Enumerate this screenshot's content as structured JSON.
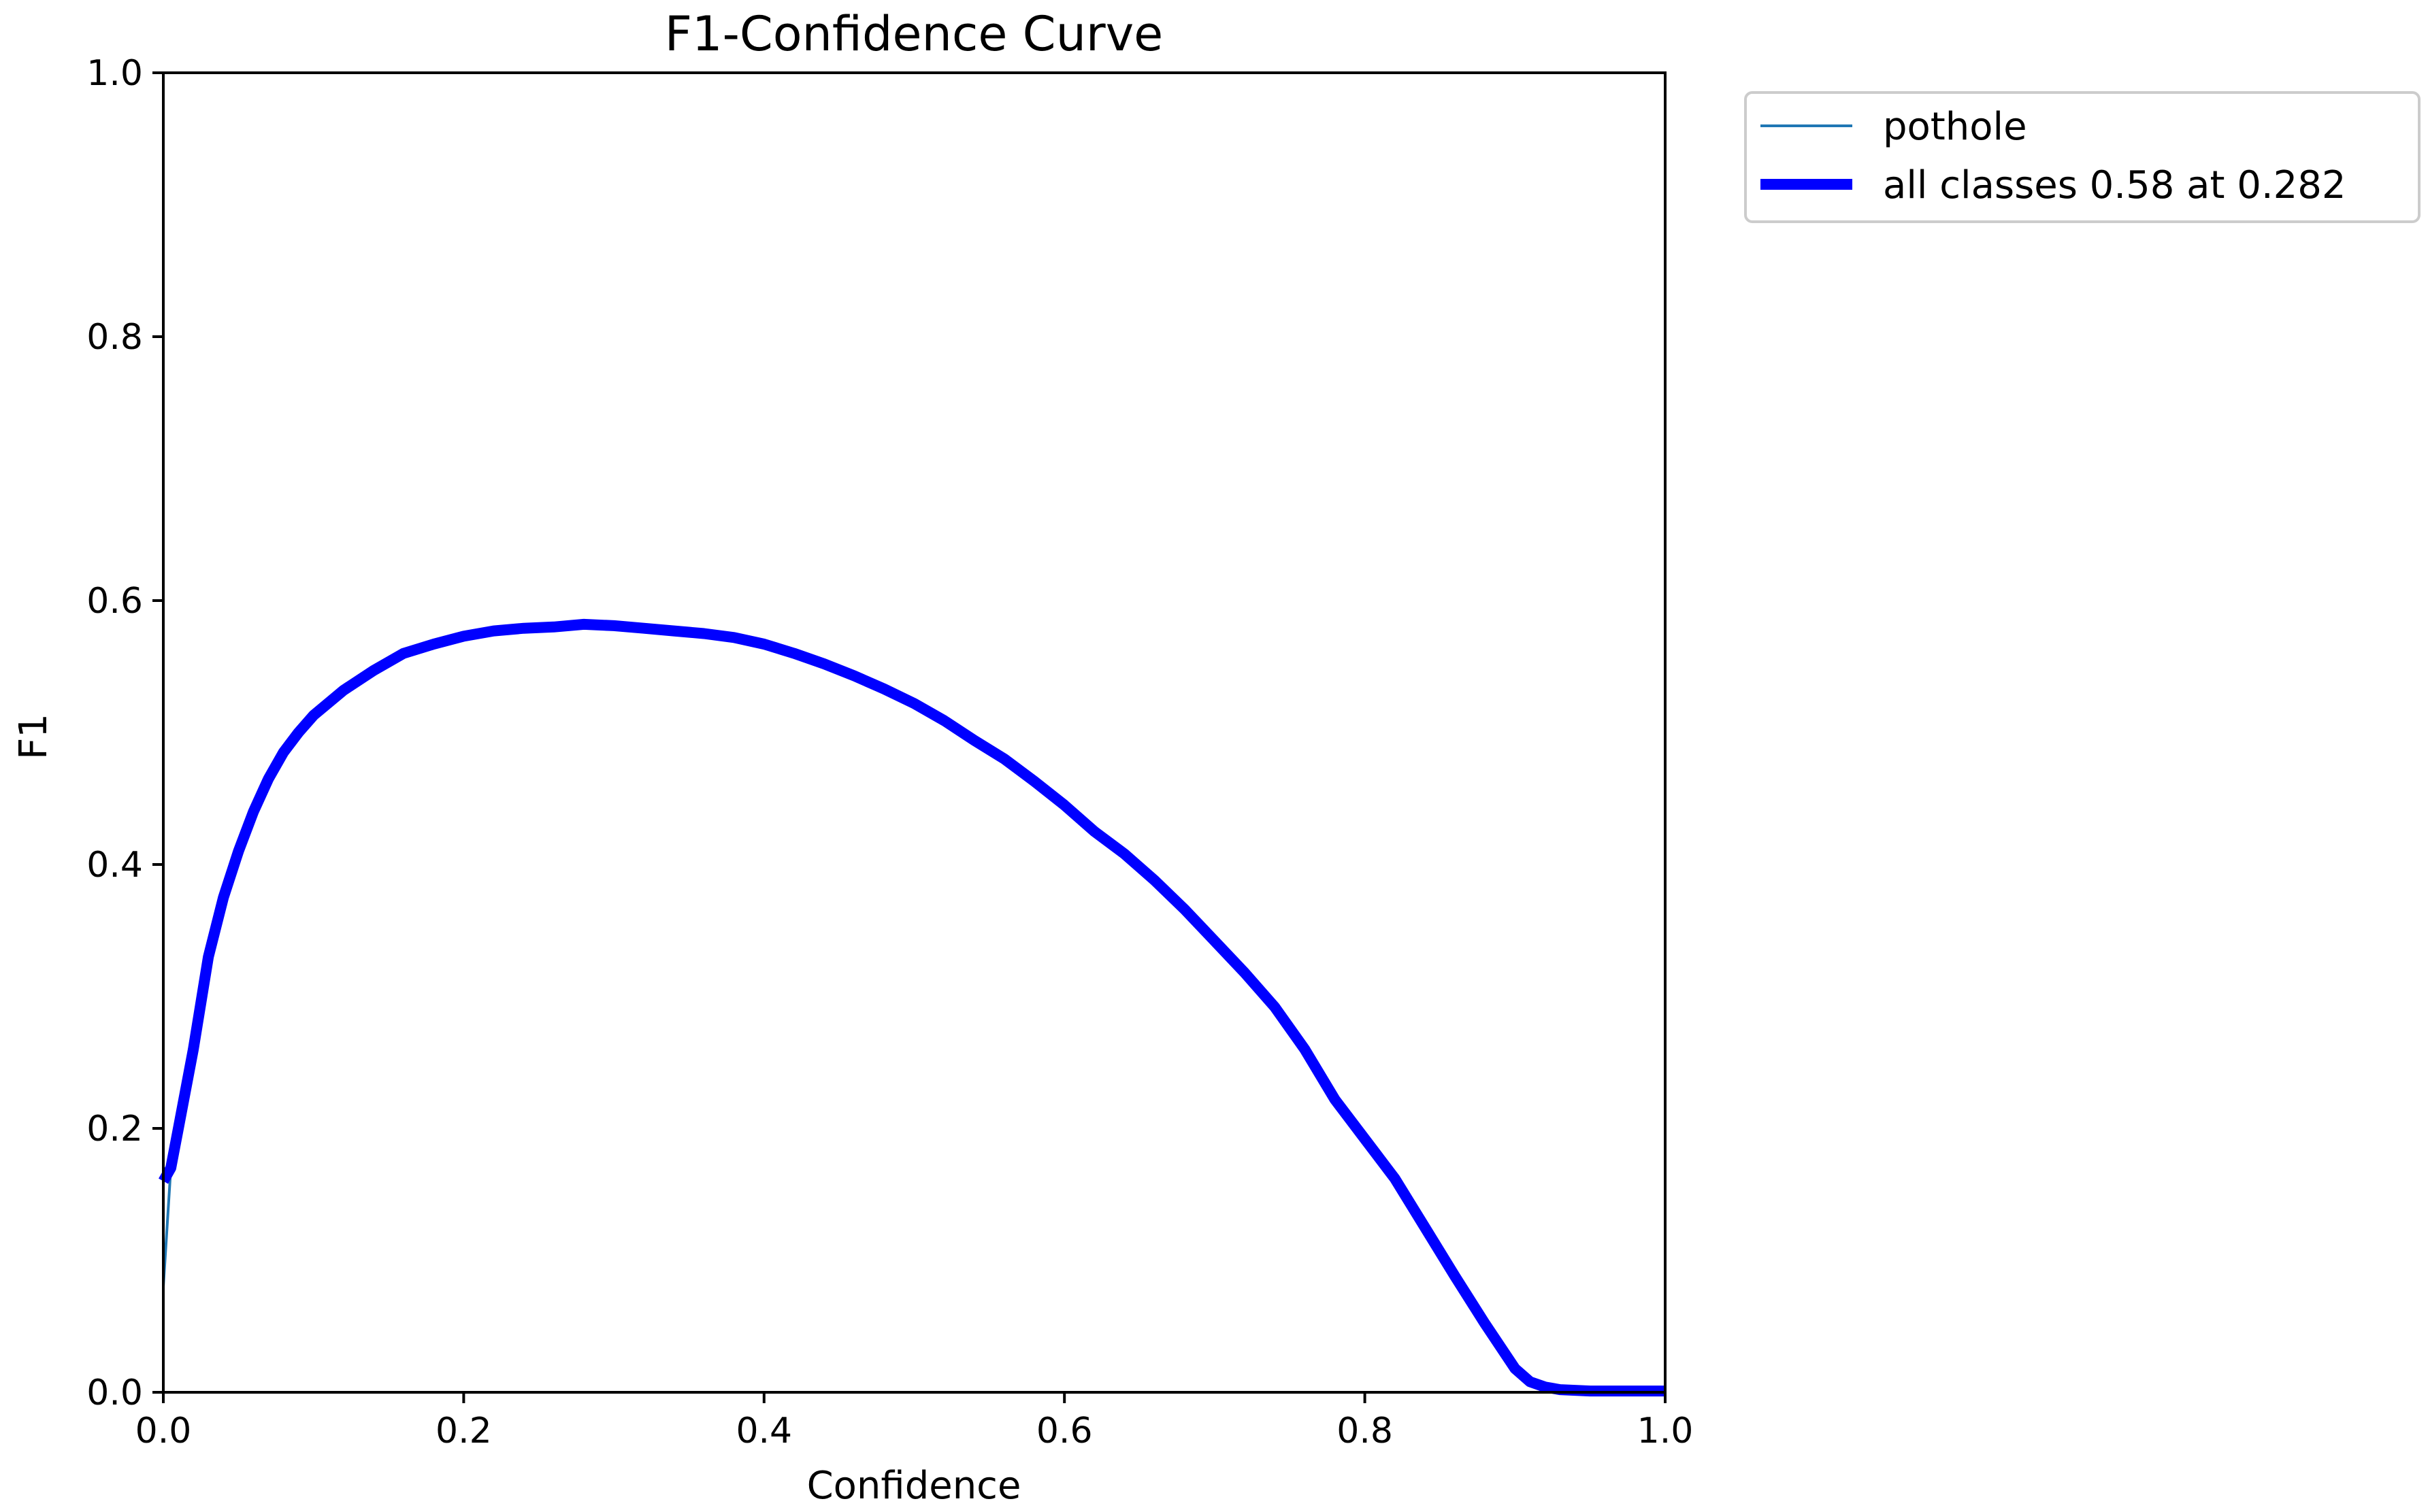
{
  "chart_data": {
    "type": "line",
    "title": "F1-Confidence Curve",
    "xlabel": "Confidence",
    "ylabel": "F1",
    "xlim": [
      0,
      1
    ],
    "ylim": [
      0,
      1
    ],
    "xticks": [
      "0.0",
      "0.2",
      "0.4",
      "0.6",
      "0.8",
      "1.0"
    ],
    "yticks": [
      "0.0",
      "0.2",
      "0.4",
      "0.6",
      "0.8",
      "1.0"
    ],
    "grid": false,
    "legend_position": "outside-top-right",
    "x": [
      0.0,
      0.005,
      0.01,
      0.02,
      0.03,
      0.04,
      0.05,
      0.06,
      0.07,
      0.08,
      0.09,
      0.1,
      0.12,
      0.14,
      0.16,
      0.18,
      0.2,
      0.22,
      0.24,
      0.26,
      0.28,
      0.3,
      0.32,
      0.34,
      0.36,
      0.38,
      0.4,
      0.42,
      0.44,
      0.46,
      0.48,
      0.5,
      0.52,
      0.54,
      0.56,
      0.58,
      0.6,
      0.62,
      0.64,
      0.66,
      0.68,
      0.7,
      0.72,
      0.74,
      0.76,
      0.78,
      0.8,
      0.82,
      0.84,
      0.86,
      0.88,
      0.9,
      0.91,
      0.92,
      0.93,
      0.95,
      0.97,
      1.0
    ],
    "series": [
      {
        "name": "pothole",
        "color": "#1f77b4",
        "linewidth": "thin",
        "values": [
          0.08,
          0.17,
          0.2,
          0.26,
          0.33,
          0.375,
          0.41,
          0.44,
          0.465,
          0.485,
          0.5,
          0.513,
          0.532,
          0.547,
          0.56,
          0.567,
          0.573,
          0.577,
          0.579,
          0.58,
          0.582,
          0.581,
          0.579,
          0.577,
          0.575,
          0.572,
          0.567,
          0.56,
          0.552,
          0.543,
          0.533,
          0.522,
          0.509,
          0.494,
          0.48,
          0.463,
          0.445,
          0.425,
          0.408,
          0.388,
          0.366,
          0.342,
          0.318,
          0.292,
          0.26,
          0.222,
          0.192,
          0.162,
          0.125,
          0.088,
          0.052,
          0.018,
          0.008,
          0.004,
          0.002,
          0.001,
          0.001,
          0.001
        ]
      },
      {
        "name": "all classes 0.58 at 0.282",
        "color": "#0000ff",
        "linewidth": "thick",
        "values": [
          0.16,
          0.17,
          0.2,
          0.26,
          0.33,
          0.375,
          0.41,
          0.44,
          0.465,
          0.485,
          0.5,
          0.513,
          0.532,
          0.547,
          0.56,
          0.567,
          0.573,
          0.577,
          0.579,
          0.58,
          0.582,
          0.581,
          0.579,
          0.577,
          0.575,
          0.572,
          0.567,
          0.56,
          0.552,
          0.543,
          0.533,
          0.522,
          0.509,
          0.494,
          0.48,
          0.463,
          0.445,
          0.425,
          0.408,
          0.388,
          0.366,
          0.342,
          0.318,
          0.292,
          0.26,
          0.222,
          0.192,
          0.162,
          0.125,
          0.088,
          0.052,
          0.018,
          0.008,
          0.004,
          0.002,
          0.001,
          0.001,
          0.001
        ]
      }
    ]
  }
}
